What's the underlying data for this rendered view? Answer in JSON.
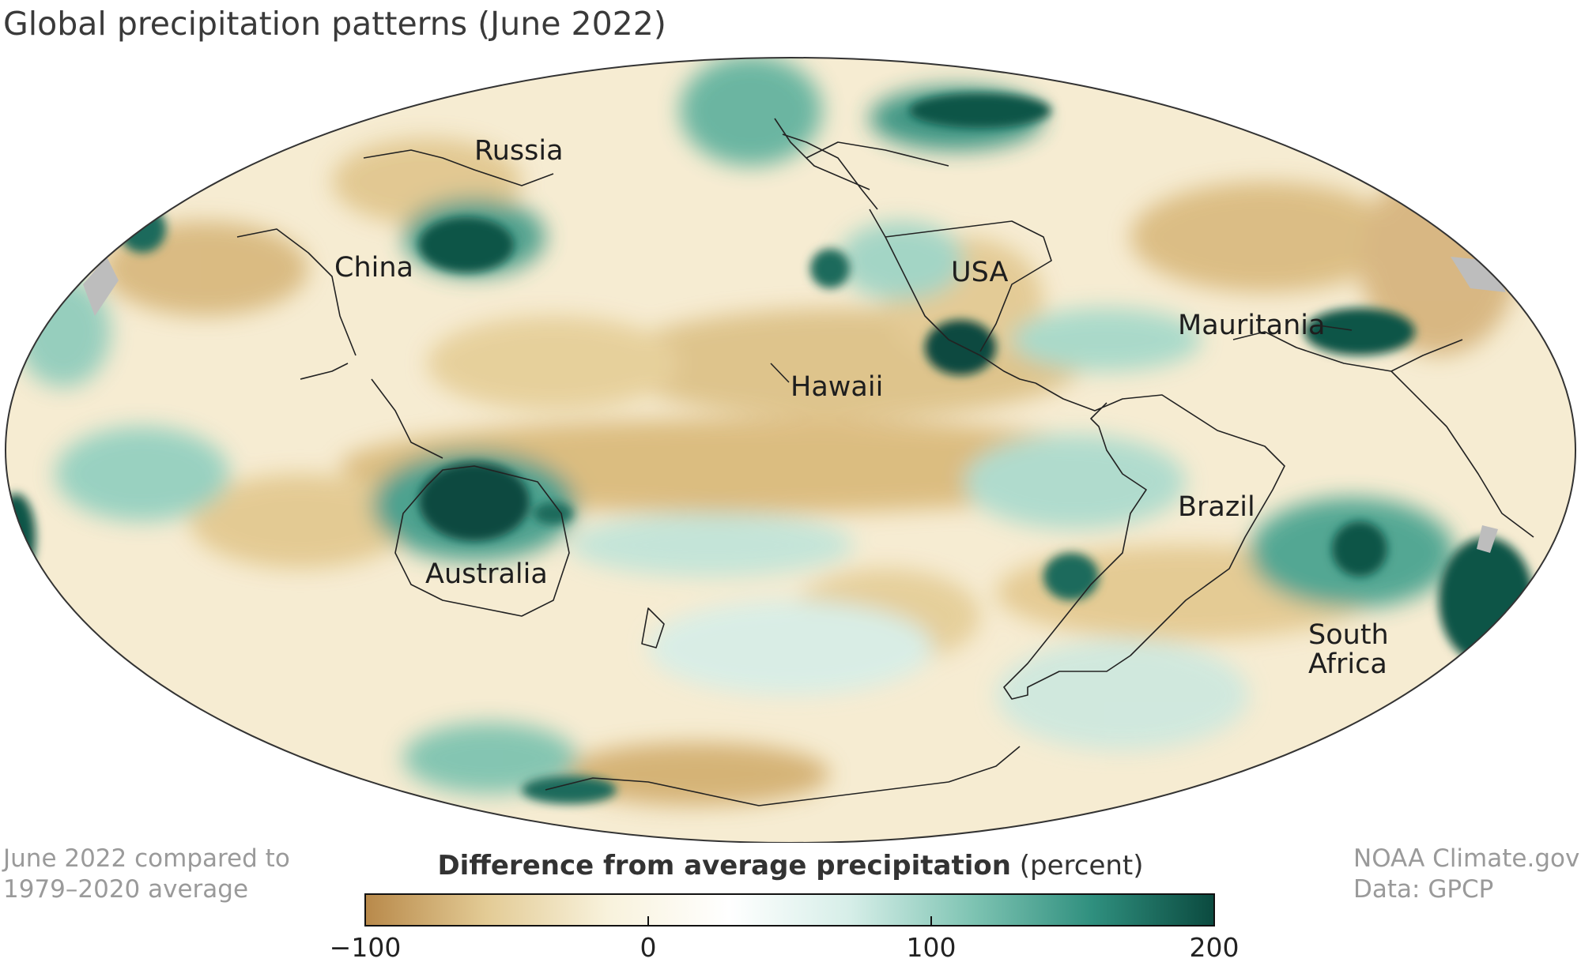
{
  "title": "Global precipitation patterns (June 2022)",
  "note_left": [
    "June 2022 compared to",
    "1979–2020 average"
  ],
  "note_right": [
    "NOAA Climate.gov",
    "Data: GPCP"
  ],
  "legend": {
    "title_bold": "Difference from average precipitation",
    "title_unit": "(percent)",
    "min": -100,
    "max": 200,
    "ticks": [
      "−100",
      "0",
      "100",
      "200"
    ],
    "tick_values": [
      -100,
      0,
      100,
      200
    ],
    "colors": [
      "#b8894a",
      "#e3cb95",
      "#f8f2dc",
      "#ffffff",
      "#d6eee8",
      "#7fc4b3",
      "#2f8f7e",
      "#0b4a3f"
    ]
  },
  "map": {
    "projection": "Mollweide, Pacific-centered",
    "labels": [
      "Russia",
      "China",
      "USA",
      "Mauritania",
      "Hawaii",
      "Australia",
      "Brazil",
      "South Africa"
    ]
  }
}
